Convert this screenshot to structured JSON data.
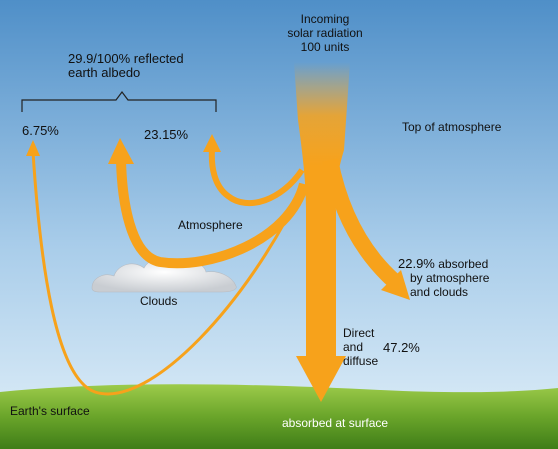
{
  "incoming": {
    "line1": "Incoming",
    "line2": "solar radiation",
    "line3": "100 units"
  },
  "albedo": {
    "line1": "29.9/100% reflected",
    "line2": "earth albedo"
  },
  "reflected": {
    "surface_pct": "6.75%",
    "cloud_pct": "23.15%"
  },
  "top_of_atmosphere": "Top of atmosphere",
  "atmosphere_label": "Atmosphere",
  "clouds_label": "Clouds",
  "absorbed_atm": {
    "pct": "22.9%",
    "line1": "absorbed",
    "line2": "by atmosphere",
    "line3": "and clouds"
  },
  "direct": {
    "line1": "Direct",
    "line2": "and",
    "line3": "diffuse",
    "pct": "47.2%"
  },
  "surface_label": "Earth's surface",
  "absorbed_surface": "absorbed at surface",
  "colors": {
    "sky_top": "#4f8fc8",
    "sky_bottom": "#d9ecf8",
    "arrow": "#f7a21b",
    "grass": "#5c9a22"
  }
}
